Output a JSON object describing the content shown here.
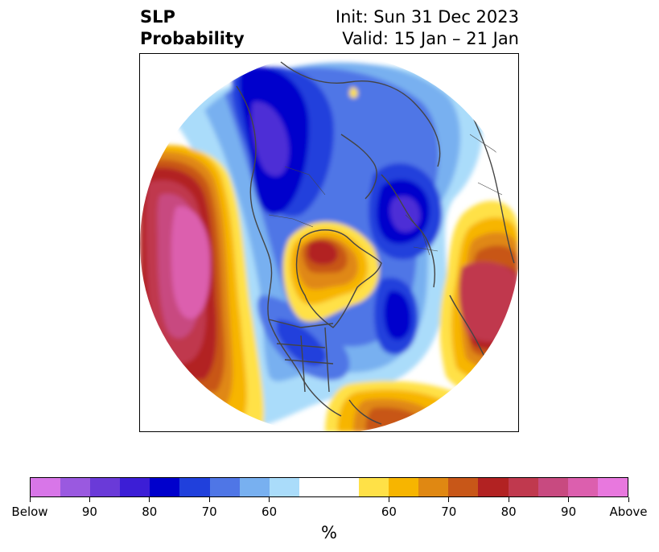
{
  "title": {
    "left_line1": "SLP",
    "left_line2": "Probability",
    "right_line1": "Init: Sun 31 Dec 2023",
    "right_line2": "Valid: 15 Jan – 21 Jan"
  },
  "map": {
    "projection": "north-polar-stereographic",
    "shading": [
      {
        "region": "north-pacific",
        "category": "above",
        "probability": "90+",
        "color": "#dc5fae"
      },
      {
        "region": "western-canada",
        "category": "below",
        "probability": "80-90",
        "color": "#4d2fd6"
      },
      {
        "region": "hudson-bay",
        "category": "above",
        "probability": "70-80",
        "color": "#b22222"
      },
      {
        "region": "north-atlantic",
        "category": "below",
        "probability": "70-80",
        "color": "#0000cc"
      },
      {
        "region": "scandinavia",
        "category": "below",
        "probability": "80-90",
        "color": "#4d2fd6"
      },
      {
        "region": "eastern-europe",
        "category": "above",
        "probability": "70-80",
        "color": "#c0394e"
      }
    ]
  },
  "colorbar": {
    "colors": [
      "#d876e8",
      "#9a59e0",
      "#6a3ad8",
      "#3c1ed6",
      "#0000cc",
      "#2040dc",
      "#4f76e6",
      "#78b0f0",
      "#aadcfa",
      "#ffffff",
      "#ffffff",
      "#ffe147",
      "#f7b500",
      "#e08812",
      "#c85718",
      "#b22222",
      "#c0394e",
      "#c84a80",
      "#dc5fae",
      "#e878de"
    ],
    "tick_labels": [
      "Below",
      "90",
      "80",
      "70",
      "60",
      "60",
      "70",
      "80",
      "90",
      "Above"
    ],
    "unit_label": "%"
  }
}
